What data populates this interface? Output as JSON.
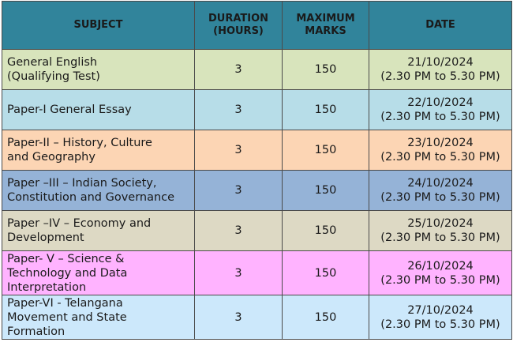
{
  "headers": {
    "subject": "SUBJECT",
    "duration_line1": "DURATION",
    "duration_line2": "(HOURS)",
    "marks_line1": "MAXIMUM",
    "marks_line2": "MARKS",
    "date": "DATE"
  },
  "rows": [
    {
      "subject_line1": "General English",
      "subject_line2": "(Qualifying Test)",
      "subject_line3": "",
      "duration": "3",
      "marks": "150",
      "date": "21/10/2024",
      "time": "(2.30 PM to 5.30 PM)",
      "color": "#d8e4bc"
    },
    {
      "subject_line1": "Paper-I General Essay",
      "subject_line2": "",
      "subject_line3": "",
      "duration": "3",
      "marks": "150",
      "date": "22/10/2024",
      "time": "(2.30 PM to 5.30 PM)",
      "color": "#b7dde8"
    },
    {
      "subject_line1": "Paper-II – History, Culture",
      "subject_line2": "and Geography",
      "subject_line3": "",
      "duration": "3",
      "marks": "150",
      "date": "23/10/2024",
      "time": "(2.30 PM to 5.30 PM)",
      "color": "#fcd5b4"
    },
    {
      "subject_line1": "Paper –III – Indian Society,",
      "subject_line2": "Constitution and Governance",
      "subject_line3": "",
      "duration": "3",
      "marks": "150",
      "date": "24/10/2024",
      "time": "(2.30 PM to 5.30 PM)",
      "color": "#95b3d7"
    },
    {
      "subject_line1": "Paper –IV – Economy and",
      "subject_line2": "Development",
      "subject_line3": "",
      "duration": "3",
      "marks": "150",
      "date": "25/10/2024",
      "time": "(2.30 PM to 5.30 PM)",
      "color": "#ddd9c4"
    },
    {
      "subject_line1": "Paper- V – Science &",
      "subject_line2": "Technology and Data",
      "subject_line3": "Interpretation",
      "duration": "3",
      "marks": "150",
      "date": "26/10/2024",
      "time": "(2.30 PM to 5.30 PM)",
      "color": "#ffb3ff"
    },
    {
      "subject_line1": "Paper-VI - Telangana",
      "subject_line2": "Movement and State",
      "subject_line3": "Formation",
      "duration": "3",
      "marks": "150",
      "date": "27/10/2024",
      "time": "(2.30 PM to 5.30 PM)",
      "color": "#cce8fb"
    }
  ]
}
